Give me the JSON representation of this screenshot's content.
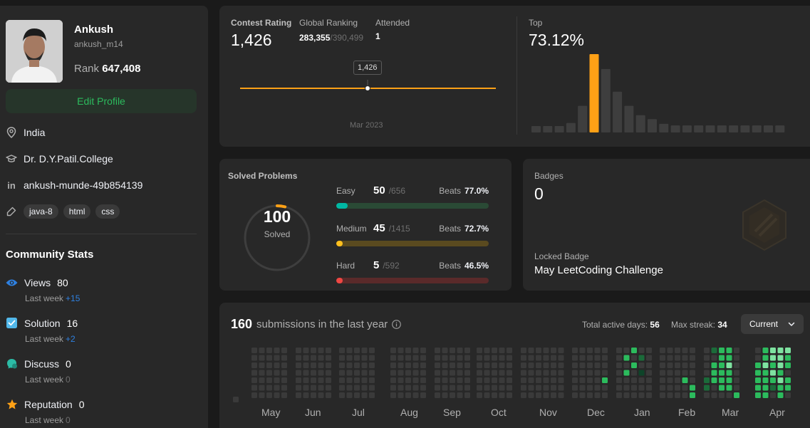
{
  "profile": {
    "name": "Ankush",
    "username": "ankush_m14",
    "rank_label": "Rank",
    "rank_value": "647,408",
    "edit_label": "Edit Profile",
    "location": "India",
    "school": "Dr. D.Y.Patil.College",
    "linkedin": "ankush-munde-49b854139",
    "skills": [
      "java-8",
      "html",
      "css"
    ]
  },
  "community": {
    "title": "Community Stats",
    "stats": [
      {
        "label": "Views",
        "value": "80",
        "sub": "Last week",
        "delta": "+15",
        "icon": "eye-icon"
      },
      {
        "label": "Solution",
        "value": "16",
        "sub": "Last week",
        "delta": "+2",
        "icon": "check-square-icon"
      },
      {
        "label": "Discuss",
        "value": "0",
        "sub": "Last week",
        "delta": "0",
        "icon": "discuss-icon"
      },
      {
        "label": "Reputation",
        "value": "0",
        "sub": "Last week",
        "delta": "0",
        "icon": "star-icon"
      }
    ]
  },
  "contest": {
    "rating_label": "Contest Rating",
    "rating_value": "1,426",
    "global_label": "Global Ranking",
    "global_value": "283,355",
    "global_total": "/390,499",
    "attended_label": "Attended",
    "attended_value": "1",
    "tooltip": "1,426",
    "date_label": "Mar 2023",
    "top_label": "Top",
    "top_value": "73.12%",
    "histogram": [
      0.08,
      0.08,
      0.08,
      0.12,
      0.34,
      1.0,
      0.81,
      0.52,
      0.34,
      0.22,
      0.17,
      0.11,
      0.09,
      0.09,
      0.09,
      0.09,
      0.09,
      0.09,
      0.09,
      0.09,
      0.09,
      0.09
    ],
    "highlight_index": 5,
    "colors": {
      "accent": "#ffa116",
      "bar": "#3e3e3e"
    }
  },
  "solved": {
    "title": "Solved Problems",
    "total": "100",
    "total_label": "Solved",
    "progress_fraction": 0.04,
    "difficulties": [
      {
        "name": "Easy",
        "count": "50",
        "total": "/656",
        "beats_label": "Beats",
        "beats": "77.0%",
        "fraction": 0.076,
        "color": "#00b8a3",
        "track": "#2a4a35"
      },
      {
        "name": "Medium",
        "count": "45",
        "total": "/1415",
        "beats_label": "Beats",
        "beats": "72.7%",
        "fraction": 0.032,
        "color": "#ffc01e",
        "track": "#5a4a1f"
      },
      {
        "name": "Hard",
        "count": "5",
        "total": "/592",
        "beats_label": "Beats",
        "beats": "46.5%",
        "fraction": 0.008,
        "color": "#ef4743",
        "track": "#5a2a2a"
      }
    ]
  },
  "badges": {
    "title": "Badges",
    "count": "0",
    "locked_label": "Locked Badge",
    "locked_name": "May LeetCoding Challenge"
  },
  "submissions": {
    "count": "160",
    "label": "submissions in the last year",
    "active_label": "Total active days:",
    "active_value": "56",
    "streak_label": "Max streak:",
    "streak_value": "34",
    "select_value": "Current",
    "months": [
      "May",
      "Jun",
      "Jul",
      "Aug",
      "Sep",
      "Oct",
      "Nov",
      "Dec",
      "Jan",
      "Feb",
      "Mar",
      "Apr"
    ],
    "colors": {
      "empty": "#3a3a3a",
      "l1": "#0e4429",
      "l2": "#1b6b3a",
      "l3": "#2cbb5d",
      "l4": "#7ee2a0"
    }
  }
}
